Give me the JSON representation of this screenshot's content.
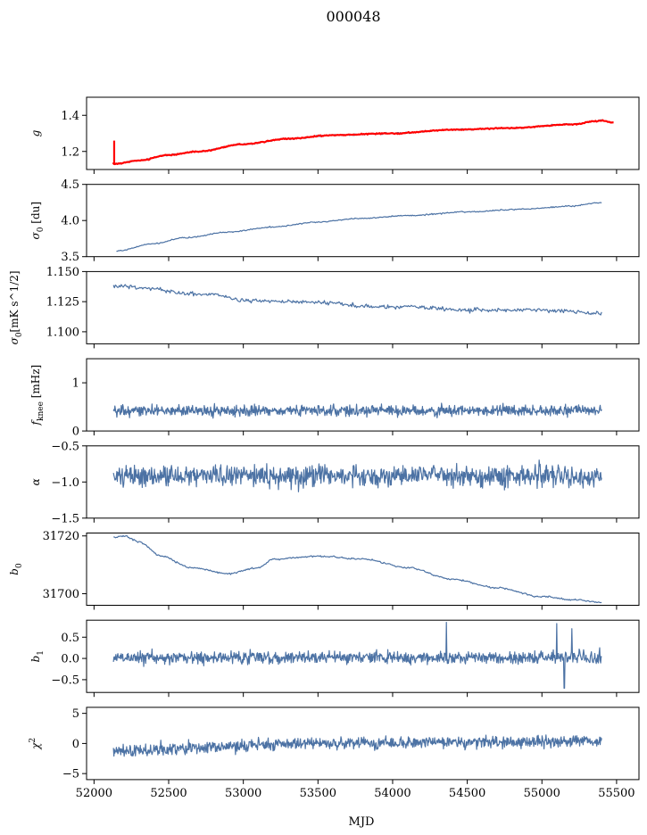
{
  "figure_title": "000048",
  "xlabel": "MJD",
  "chart_data": [
    {
      "type": "line",
      "ylabel_main": "g",
      "ylabel_sub": "",
      "ylabel_tail": "",
      "xlim": [
        51950,
        55650
      ],
      "ylim": [
        1.1,
        1.5
      ],
      "yticks": [
        1.2,
        1.4
      ],
      "ytick_labels": [
        "1.2",
        "1.4"
      ],
      "xticks": [
        52000,
        52500,
        53000,
        53500,
        54000,
        54500,
        55000,
        55500
      ],
      "colors": {
        "series": "#4c72a4",
        "overlay": "#ff0000"
      },
      "series": [
        {
          "kind": "smooth",
          "x0": 52130,
          "x1": 55400,
          "knots": [
            [
              52130,
              1.13
            ],
            [
              52300,
              1.15
            ],
            [
              52500,
              1.18
            ],
            [
              52700,
              1.2
            ],
            [
              53000,
              1.24
            ],
            [
              53300,
              1.27
            ],
            [
              53600,
              1.29
            ],
            [
              54000,
              1.3
            ],
            [
              54400,
              1.32
            ],
            [
              54800,
              1.33
            ],
            [
              55200,
              1.35
            ],
            [
              55400,
              1.37
            ]
          ],
          "noise": 0.003,
          "seed": 1,
          "n": 500
        },
        {
          "kind": "smooth",
          "overlay": true,
          "x0": 52130,
          "x1": 55480,
          "knots": [
            [
              52130,
              1.13
            ],
            [
              52300,
              1.15
            ],
            [
              52500,
              1.18
            ],
            [
              52700,
              1.2
            ],
            [
              53000,
              1.24
            ],
            [
              53300,
              1.27
            ],
            [
              53600,
              1.29
            ],
            [
              54000,
              1.3
            ],
            [
              54400,
              1.32
            ],
            [
              54800,
              1.33
            ],
            [
              55200,
              1.35
            ],
            [
              55400,
              1.37
            ],
            [
              55480,
              1.36
            ]
          ],
          "noise": 0.002,
          "seed": 2,
          "n": 500,
          "spike": {
            "x": 52135,
            "y0": 1.13,
            "y1": 1.26
          }
        }
      ]
    },
    {
      "type": "line",
      "ylabel_main": "σ",
      "ylabel_sub": "0",
      "ylabel_tail": " [du]",
      "xlim": [
        51950,
        55650
      ],
      "ylim": [
        3.5,
        4.5
      ],
      "yticks": [
        3.5,
        4.0,
        4.5
      ],
      "ytick_labels": [
        "3.5",
        "4.0",
        "4.5"
      ],
      "xticks": [
        52000,
        52500,
        53000,
        53500,
        54000,
        54500,
        55000,
        55500
      ],
      "colors": {
        "series": "#4c72a4"
      },
      "series": [
        {
          "kind": "smooth",
          "x0": 52150,
          "x1": 55400,
          "knots": [
            [
              52150,
              3.58
            ],
            [
              52400,
              3.68
            ],
            [
              52600,
              3.76
            ],
            [
              52900,
              3.84
            ],
            [
              53200,
              3.91
            ],
            [
              53500,
              3.98
            ],
            [
              53800,
              4.03
            ],
            [
              54100,
              4.07
            ],
            [
              54500,
              4.12
            ],
            [
              54900,
              4.16
            ],
            [
              55200,
              4.2
            ],
            [
              55400,
              4.25
            ]
          ],
          "noise": 0.006,
          "seed": 3,
          "n": 500
        }
      ]
    },
    {
      "type": "line",
      "ylabel_main": "σ",
      "ylabel_sub": "0",
      "ylabel_tail": "[mK s^1/2]",
      "xlim": [
        51950,
        55650
      ],
      "ylim": [
        1.09,
        1.15
      ],
      "yticks": [
        1.1,
        1.125,
        1.15
      ],
      "ytick_labels": [
        "1.100",
        "1.125",
        "1.150"
      ],
      "xticks": [
        52000,
        52500,
        53000,
        53500,
        54000,
        54500,
        55000,
        55500
      ],
      "colors": {
        "series": "#4c72a4"
      },
      "series": [
        {
          "kind": "smooth",
          "x0": 52130,
          "x1": 55400,
          "knots": [
            [
              52130,
              1.138
            ],
            [
              52400,
              1.136
            ],
            [
              52600,
              1.132
            ],
            [
              52800,
              1.131
            ],
            [
              53000,
              1.126
            ],
            [
              53300,
              1.125
            ],
            [
              53600,
              1.124
            ],
            [
              53800,
              1.121
            ],
            [
              54100,
              1.121
            ],
            [
              54500,
              1.118
            ],
            [
              54900,
              1.118
            ],
            [
              55200,
              1.117
            ],
            [
              55400,
              1.115
            ]
          ],
          "noise": 0.0012,
          "seed": 4,
          "n": 500
        }
      ]
    },
    {
      "type": "line",
      "ylabel_main": "f",
      "ylabel_sub": "knee",
      "ylabel_tail": " [mHz]",
      "xlim": [
        51950,
        55650
      ],
      "ylim": [
        0,
        1.5
      ],
      "yticks": [
        0,
        1
      ],
      "ytick_labels": [
        "0",
        "1"
      ],
      "xticks": [
        52000,
        52500,
        53000,
        53500,
        54000,
        54500,
        55000,
        55500
      ],
      "colors": {
        "series": "#4c72a4"
      },
      "series": [
        {
          "kind": "noise",
          "x0": 52130,
          "x1": 55400,
          "mean": 0.42,
          "sd": 0.08,
          "seed": 5,
          "n": 1000
        }
      ]
    },
    {
      "type": "line",
      "ylabel_main": "α",
      "ylabel_sub": "",
      "ylabel_tail": "",
      "xlim": [
        51950,
        55650
      ],
      "ylim": [
        -1.5,
        -0.5
      ],
      "yticks": [
        -1.5,
        -1.0,
        -0.5
      ],
      "ytick_labels": [
        "−1.5",
        "−1.0",
        "−0.5"
      ],
      "xticks": [
        52000,
        52500,
        53000,
        53500,
        54000,
        54500,
        55000,
        55500
      ],
      "colors": {
        "series": "#4c72a4"
      },
      "series": [
        {
          "kind": "noise",
          "x0": 52130,
          "x1": 55400,
          "mean": -0.92,
          "sd": 0.1,
          "seed": 6,
          "n": 1000
        }
      ]
    },
    {
      "type": "line",
      "ylabel_main": "b",
      "ylabel_sub": "0",
      "ylabel_tail": "",
      "xlim": [
        51950,
        55650
      ],
      "ylim": [
        31696,
        31721
      ],
      "yticks": [
        31700,
        31720
      ],
      "ytick_labels": [
        "31700",
        "31720"
      ],
      "xticks": [
        52000,
        52500,
        53000,
        53500,
        54000,
        54500,
        55000,
        55500
      ],
      "colors": {
        "series": "#4c72a4"
      },
      "series": [
        {
          "kind": "smooth",
          "x0": 52130,
          "x1": 55400,
          "knots": [
            [
              52130,
              31719.5
            ],
            [
              52200,
              31720
            ],
            [
              52300,
              31718
            ],
            [
              52450,
              31713
            ],
            [
              52650,
              31709
            ],
            [
              52900,
              31707
            ],
            [
              53100,
              31709
            ],
            [
              53200,
              31712
            ],
            [
              53500,
              31713
            ],
            [
              53800,
              31712
            ],
            [
              54100,
              31709
            ],
            [
              54400,
              31705
            ],
            [
              54700,
              31702
            ],
            [
              55000,
              31699
            ],
            [
              55200,
              31698
            ],
            [
              55400,
              31697
            ]
          ],
          "noise": 0.2,
          "seed": 7,
          "n": 500
        }
      ]
    },
    {
      "type": "line",
      "ylabel_main": "b",
      "ylabel_sub": "1",
      "ylabel_tail": "",
      "xlim": [
        51950,
        55650
      ],
      "ylim": [
        -0.8,
        0.9
      ],
      "yticks": [
        -0.5,
        0.0,
        0.5
      ],
      "ytick_labels": [
        "−0.5",
        "0.0",
        "0.5"
      ],
      "xticks": [
        52000,
        52500,
        53000,
        53500,
        54000,
        54500,
        55000,
        55500
      ],
      "colors": {
        "series": "#4c72a4"
      },
      "series": [
        {
          "kind": "noise",
          "x0": 52130,
          "x1": 55400,
          "mean": 0.02,
          "sd": 0.1,
          "seed": 8,
          "n": 1000,
          "spikes": [
            [
              54360,
              0.85
            ],
            [
              55100,
              0.82
            ],
            [
              55150,
              -0.7
            ],
            [
              55200,
              0.7
            ]
          ]
        }
      ]
    },
    {
      "type": "line",
      "ylabel_main": "χ",
      "ylabel_sup": "2",
      "ylabel_sub": "",
      "ylabel_tail": "",
      "xlim": [
        51950,
        55650
      ],
      "ylim": [
        -6,
        6
      ],
      "yticks": [
        -5,
        0,
        5
      ],
      "ytick_labels": [
        "−5",
        "0",
        "5"
      ],
      "xticks": [
        52000,
        52500,
        53000,
        53500,
        54000,
        54500,
        55000,
        55500
      ],
      "xtick_labels": [
        "52000",
        "52500",
        "53000",
        "53500",
        "54000",
        "54500",
        "55000",
        "55500"
      ],
      "colors": {
        "series": "#4c72a4"
      },
      "series": [
        {
          "kind": "noise",
          "x0": 52130,
          "x1": 55400,
          "mean": 0,
          "sd": 0.7,
          "trend": [
            [
              52130,
              -1.2
            ],
            [
              53500,
              0
            ],
            [
              55400,
              0.3
            ]
          ],
          "seed": 9,
          "n": 1000
        }
      ]
    }
  ]
}
